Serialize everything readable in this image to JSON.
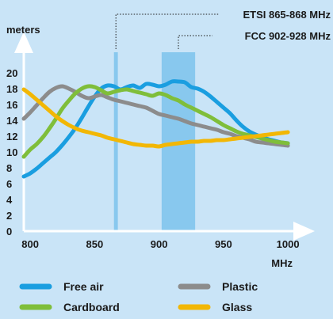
{
  "chart_data": {
    "type": "line",
    "ylabel": "meters",
    "xlabel": "MHz",
    "xlim": [
      795,
      1003
    ],
    "ylim": [
      0,
      21
    ],
    "x_ticks": [
      800,
      850,
      900,
      950,
      1000
    ],
    "y_ticks": [
      0,
      2,
      4,
      6,
      8,
      10,
      12,
      14,
      16,
      18,
      20
    ],
    "grid": false,
    "legend_position": "bottom",
    "bands": [
      {
        "label": "ETSI 865-868 MHz",
        "range": [
          865,
          868
        ],
        "color": "#7cc3ec"
      },
      {
        "label": "FCC 902-928 MHz",
        "range": [
          902,
          928
        ],
        "color": "#7cc3ec"
      }
    ],
    "series": [
      {
        "name": "Free air",
        "color": "#1a9ee0",
        "x": [
          795,
          800,
          805,
          810,
          815,
          820,
          825,
          830,
          835,
          840,
          845,
          850,
          855,
          860,
          865,
          870,
          875,
          880,
          885,
          890,
          895,
          900,
          905,
          910,
          915,
          920,
          925,
          930,
          935,
          940,
          945,
          950,
          955,
          960,
          965,
          970,
          975,
          980,
          985,
          990,
          995,
          1000
        ],
        "values": [
          6.9,
          7.3,
          7.9,
          8.6,
          9.3,
          10.0,
          10.9,
          11.9,
          13.0,
          14.3,
          15.7,
          17.0,
          18.0,
          18.4,
          18.3,
          17.9,
          18.2,
          18.4,
          18.1,
          18.6,
          18.5,
          18.3,
          18.5,
          18.9,
          18.9,
          18.8,
          18.2,
          18.0,
          17.6,
          17.0,
          16.3,
          15.6,
          14.9,
          14.0,
          13.2,
          12.6,
          12.2,
          11.9,
          11.6,
          11.4,
          11.2,
          11.1
        ]
      },
      {
        "name": "Plastic",
        "color": "#8c8c8c",
        "x": [
          795,
          800,
          805,
          810,
          815,
          820,
          825,
          830,
          835,
          840,
          845,
          850,
          855,
          860,
          865,
          870,
          875,
          880,
          885,
          890,
          895,
          900,
          905,
          910,
          915,
          920,
          925,
          930,
          935,
          940,
          945,
          950,
          955,
          960,
          965,
          970,
          975,
          980,
          985,
          990,
          995,
          1000
        ],
        "values": [
          14.2,
          15.0,
          15.9,
          16.8,
          17.6,
          18.1,
          18.3,
          18.0,
          17.6,
          17.1,
          16.8,
          17.0,
          17.2,
          16.9,
          16.6,
          16.4,
          16.2,
          16.0,
          15.8,
          15.6,
          15.2,
          14.8,
          14.6,
          14.4,
          14.2,
          13.9,
          13.6,
          13.4,
          13.2,
          13.0,
          12.8,
          12.5,
          12.3,
          12.0,
          11.8,
          11.6,
          11.3,
          11.2,
          11.1,
          11.0,
          10.9,
          10.8
        ]
      },
      {
        "name": "Cardboard",
        "color": "#7fbe3a",
        "x": [
          795,
          800,
          805,
          810,
          815,
          820,
          825,
          830,
          835,
          840,
          845,
          850,
          855,
          860,
          865,
          870,
          875,
          880,
          885,
          890,
          895,
          900,
          905,
          910,
          915,
          920,
          925,
          930,
          935,
          940,
          945,
          950,
          955,
          960,
          965,
          970,
          975,
          980,
          985,
          990,
          995,
          1000
        ],
        "values": [
          9.4,
          10.3,
          11.0,
          11.9,
          13.0,
          14.2,
          15.5,
          16.5,
          17.4,
          18.0,
          18.3,
          18.2,
          17.8,
          17.4,
          17.6,
          17.8,
          17.9,
          17.7,
          17.5,
          17.3,
          17.1,
          17.4,
          17.2,
          16.8,
          16.5,
          16.0,
          15.6,
          15.2,
          14.8,
          14.4,
          13.9,
          13.4,
          13.0,
          12.6,
          12.3,
          12.1,
          11.9,
          11.7,
          11.5,
          11.3,
          11.2,
          11.1
        ]
      },
      {
        "name": "Glass",
        "color": "#f2b705",
        "x": [
          795,
          800,
          805,
          810,
          815,
          820,
          825,
          830,
          835,
          840,
          845,
          850,
          855,
          860,
          865,
          870,
          875,
          880,
          885,
          890,
          895,
          900,
          905,
          910,
          915,
          920,
          925,
          930,
          935,
          940,
          945,
          950,
          955,
          960,
          965,
          970,
          975,
          980,
          985,
          990,
          995,
          1000
        ],
        "values": [
          17.9,
          17.3,
          16.6,
          15.9,
          15.2,
          14.5,
          13.9,
          13.4,
          13.0,
          12.7,
          12.5,
          12.3,
          12.1,
          11.8,
          11.6,
          11.4,
          11.2,
          11.0,
          10.9,
          10.8,
          10.8,
          10.7,
          10.9,
          11.0,
          11.1,
          11.2,
          11.3,
          11.3,
          11.4,
          11.4,
          11.5,
          11.5,
          11.6,
          11.7,
          11.8,
          11.9,
          12.0,
          12.1,
          12.2,
          12.3,
          12.4,
          12.5
        ]
      }
    ]
  }
}
